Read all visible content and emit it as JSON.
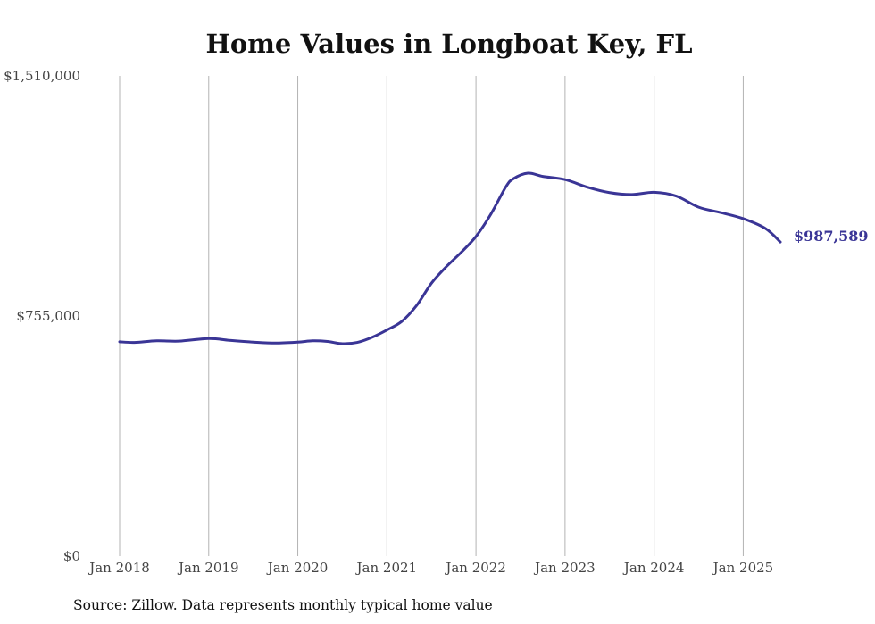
{
  "chart_data": {
    "type": "line",
    "title": "Home Values in Longboat Key, FL",
    "xlabel": "",
    "ylabel": "",
    "x_start": "2018-01",
    "x_end": "2025-06",
    "x_ticks": [
      {
        "label": "Jan 2018",
        "x": 2018.0
      },
      {
        "label": "Jan 2019",
        "x": 2019.0
      },
      {
        "label": "Jan 2020",
        "x": 2020.0
      },
      {
        "label": "Jan 2021",
        "x": 2021.0
      },
      {
        "label": "Jan 2022",
        "x": 2022.0
      },
      {
        "label": "Jan 2023",
        "x": 2023.0
      },
      {
        "label": "Jan 2024",
        "x": 2024.0
      },
      {
        "label": "Jan 2025",
        "x": 2025.0
      }
    ],
    "y_ticks": [
      {
        "label": "$0",
        "value": 0
      },
      {
        "label": "$755,000",
        "value": 755000
      },
      {
        "label": "$1,510,000",
        "value": 1510000
      }
    ],
    "ylim": [
      0,
      1510000
    ],
    "grid": "vertical",
    "series": [
      {
        "color": "#3a3596",
        "points": [
          {
            "x": "2018-01",
            "y": 674000
          },
          {
            "x": "2018-03",
            "y": 672000
          },
          {
            "x": "2018-06",
            "y": 677000
          },
          {
            "x": "2018-09",
            "y": 676000
          },
          {
            "x": "2019-01",
            "y": 684000
          },
          {
            "x": "2019-04",
            "y": 678000
          },
          {
            "x": "2019-07",
            "y": 673000
          },
          {
            "x": "2019-10",
            "y": 670000
          },
          {
            "x": "2020-01",
            "y": 673000
          },
          {
            "x": "2020-03",
            "y": 677000
          },
          {
            "x": "2020-05",
            "y": 675000
          },
          {
            "x": "2020-07",
            "y": 668000
          },
          {
            "x": "2020-09",
            "y": 672000
          },
          {
            "x": "2020-11",
            "y": 688000
          },
          {
            "x": "2021-01",
            "y": 711000
          },
          {
            "x": "2021-03",
            "y": 738000
          },
          {
            "x": "2021-05",
            "y": 788000
          },
          {
            "x": "2021-07",
            "y": 858000
          },
          {
            "x": "2021-09",
            "y": 910000
          },
          {
            "x": "2021-11",
            "y": 955000
          },
          {
            "x": "2022-01",
            "y": 1005000
          },
          {
            "x": "2022-03",
            "y": 1075000
          },
          {
            "x": "2022-05",
            "y": 1160000
          },
          {
            "x": "2022-06",
            "y": 1186000
          },
          {
            "x": "2022-08",
            "y": 1204000
          },
          {
            "x": "2022-10",
            "y": 1194000
          },
          {
            "x": "2023-01",
            "y": 1184000
          },
          {
            "x": "2023-04",
            "y": 1160000
          },
          {
            "x": "2023-07",
            "y": 1143000
          },
          {
            "x": "2023-10",
            "y": 1137000
          },
          {
            "x": "2024-01",
            "y": 1144000
          },
          {
            "x": "2024-04",
            "y": 1132000
          },
          {
            "x": "2024-07",
            "y": 1097000
          },
          {
            "x": "2024-10",
            "y": 1080000
          },
          {
            "x": "2025-01",
            "y": 1061000
          },
          {
            "x": "2025-04",
            "y": 1030000
          },
          {
            "x": "2025-06",
            "y": 987589
          }
        ]
      }
    ],
    "end_label": "$987,589",
    "source_note": "Source: Zillow. Data represents monthly typical home value"
  }
}
